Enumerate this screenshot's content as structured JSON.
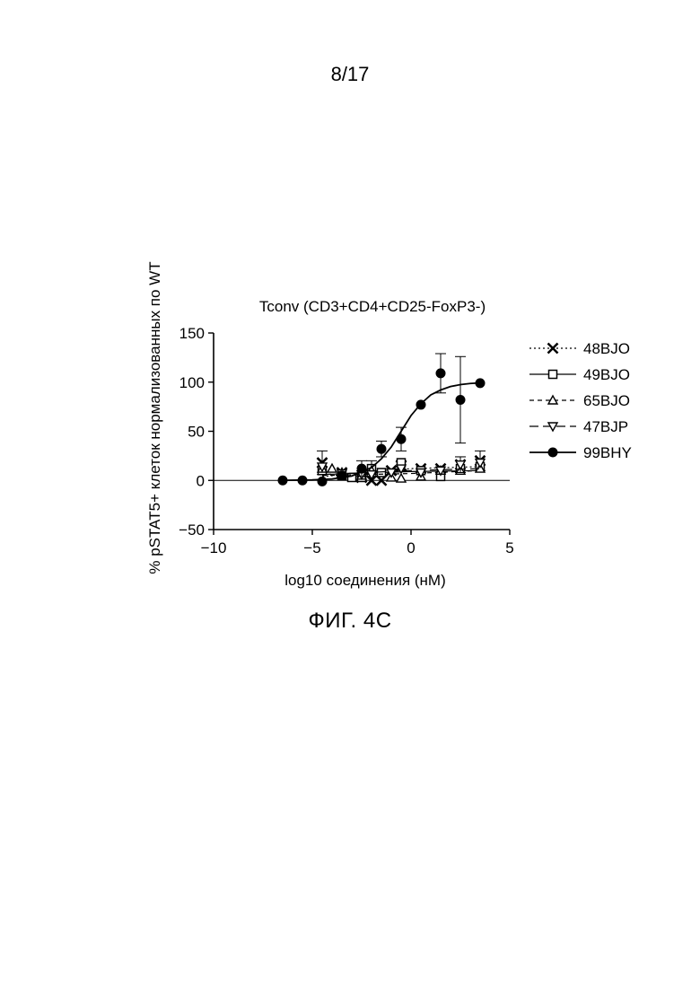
{
  "page": {
    "page_number": "8/17",
    "figure_caption": "ФИГ. 4C"
  },
  "chart_data": {
    "type": "scatter",
    "title": "Tconv (CD3+CD4+CD25-FoxP3-)",
    "xlabel": "log10 соединения (нМ)",
    "ylabel": "% pSTAT5+ клеток нормализованных по WT",
    "xlim": [
      -10,
      5
    ],
    "ylim": [
      -50,
      150
    ],
    "x_ticks": [
      "−10",
      "−5",
      "0",
      "5"
    ],
    "y_ticks": [
      "150",
      "100",
      "50",
      "0",
      "−50"
    ],
    "x_tick_values": [
      -10,
      -5,
      0,
      5
    ],
    "y_tick_values": [
      150,
      100,
      50,
      0,
      -50
    ],
    "zero_line": true,
    "grid": false,
    "legend_position": "right",
    "series": [
      {
        "name": "48BJO",
        "marker": "x",
        "line_style": "dotted",
        "x": [
          -4.5,
          -3.5,
          -2.5,
          -2.0,
          -1.5,
          -1.0,
          -0.5,
          0.5,
          1.5,
          2.5,
          3.5
        ],
        "y": [
          18,
          8,
          3,
          0,
          0,
          10,
          15,
          12,
          12,
          16,
          20
        ],
        "err": [
          12,
          0,
          0,
          0,
          0,
          0,
          5,
          0,
          0,
          8,
          10
        ],
        "fit": {
          "x": [
            -4.5,
            0,
            3.5
          ],
          "y": [
            4,
            12,
            14
          ]
        }
      },
      {
        "name": "49BJO",
        "marker": "square",
        "line_style": "solid",
        "x": [
          -4.5,
          -3.5,
          -3.0,
          -2.5,
          -2.0,
          -1.5,
          -0.5,
          0.5,
          1.5,
          2.5,
          3.5
        ],
        "y": [
          10,
          5,
          3,
          3,
          12,
          8,
          18,
          10,
          4,
          12,
          14
        ],
        "err": [
          0,
          0,
          0,
          0,
          8,
          0,
          0,
          0,
          0,
          0,
          0
        ],
        "fit": {
          "x": [
            -4.5,
            0,
            3.5
          ],
          "y": [
            6,
            9,
            10
          ]
        }
      },
      {
        "name": "65BJO",
        "marker": "triangle-up",
        "line_style": "dashed",
        "x": [
          -4.5,
          -4.0,
          -3.5,
          -2.5,
          -2.0,
          -1.0,
          -0.5,
          0.5,
          1.5,
          2.5,
          3.5
        ],
        "y": [
          12,
          12,
          8,
          5,
          10,
          3,
          2,
          4,
          10,
          10,
          12
        ],
        "err": [
          0,
          0,
          0,
          0,
          0,
          0,
          0,
          0,
          0,
          0,
          0
        ],
        "fit": {
          "x": [
            -4.5,
            0,
            3.5
          ],
          "y": [
            5,
            7,
            10
          ]
        }
      },
      {
        "name": "47BJP",
        "marker": "triangle-down",
        "line_style": "long-dash",
        "x": [
          -4.5,
          -3.5,
          -2.5,
          -2.0,
          -1.0,
          -0.5,
          0.5,
          1.5,
          2.5,
          3.5
        ],
        "y": [
          14,
          7,
          6,
          6,
          8,
          12,
          8,
          10,
          16,
          18
        ],
        "err": [
          0,
          0,
          0,
          0,
          0,
          0,
          0,
          0,
          8,
          0
        ],
        "fit": {
          "x": [
            -4.5,
            0,
            3.5
          ],
          "y": [
            6,
            10,
            12
          ]
        }
      },
      {
        "name": "99BHY",
        "marker": "circle",
        "line_style": "solid",
        "x": [
          -6.5,
          -5.5,
          -4.5,
          -3.5,
          -2.5,
          -1.5,
          -0.5,
          0.5,
          1.5,
          2.5,
          3.5
        ],
        "y": [
          0,
          0,
          -1,
          5,
          12,
          32,
          42,
          77,
          109,
          82,
          99
        ],
        "err": [
          0,
          0,
          0,
          0,
          8,
          8,
          12,
          0,
          20,
          44,
          0
        ],
        "fit": {
          "x": [
            -6.5,
            -5,
            -4,
            -3,
            -2,
            -1.5,
            -1,
            -0.5,
            0,
            0.5,
            1,
            1.5,
            2,
            2.5,
            3,
            3.5
          ],
          "y": [
            0.1,
            0.5,
            1.5,
            4.5,
            13,
            22,
            34,
            50,
            66,
            78,
            87,
            92,
            95.5,
            97.5,
            98.6,
            99.2
          ]
        }
      }
    ],
    "colors": {
      "ink": "#000000",
      "background": "#ffffff"
    }
  }
}
